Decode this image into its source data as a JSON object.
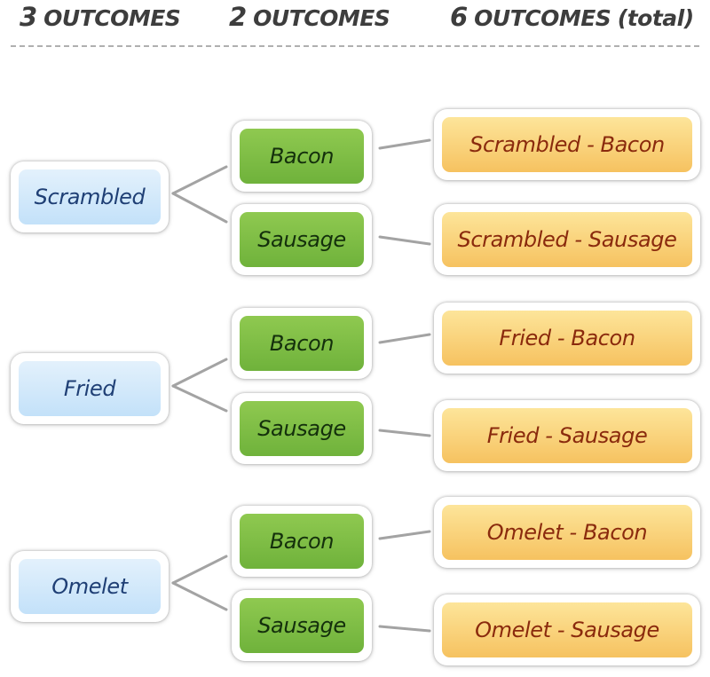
{
  "headers": {
    "col1": {
      "num": "3",
      "word": "OUTCOMES"
    },
    "col2": {
      "num": "2",
      "word": "OUTCOMES"
    },
    "col3": {
      "num": "6",
      "word": "OUTCOMES",
      "note": "(total)"
    }
  },
  "eggs": [
    {
      "label": "Scrambled",
      "meats": [
        {
          "label": "Bacon",
          "outcome": "Scrambled - Bacon"
        },
        {
          "label": "Sausage",
          "outcome": "Scrambled - Sausage"
        }
      ]
    },
    {
      "label": "Fried",
      "meats": [
        {
          "label": "Bacon",
          "outcome": "Fried - Bacon"
        },
        {
          "label": "Sausage",
          "outcome": "Fried - Sausage"
        }
      ]
    },
    {
      "label": "Omelet",
      "meats": [
        {
          "label": "Bacon",
          "outcome": "Omelet - Bacon"
        },
        {
          "label": "Sausage",
          "outcome": "Omelet - Sausage"
        }
      ]
    }
  ],
  "colors": {
    "egg_box": "#c3e1f9",
    "egg_text": "#1f3f75",
    "meat_box": "#7cbd45",
    "meat_text": "#14300c",
    "outcome_box": "#f9d277",
    "outcome_text": "#8a2a0d",
    "connector": "#a3a3a3",
    "header_text": "#3d3d3d"
  }
}
